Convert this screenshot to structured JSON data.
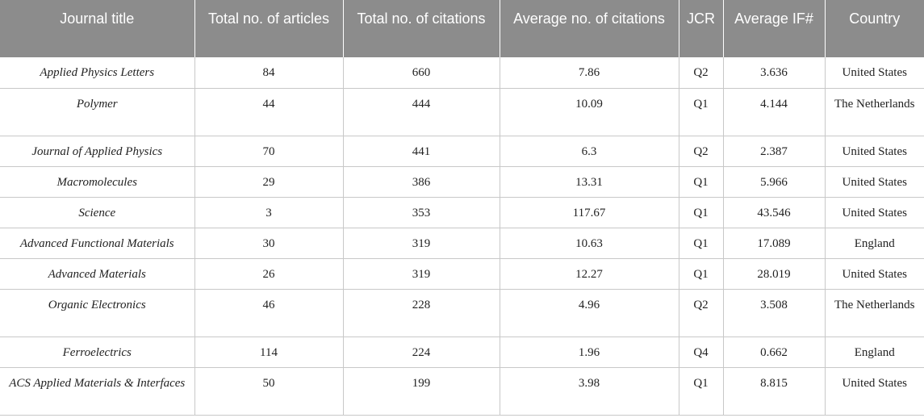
{
  "table": {
    "headers": [
      "Journal title",
      "Total no. of articles",
      "Total no. of citations",
      "Average no. of citations",
      "JCR",
      "Average IF#",
      "Country"
    ],
    "rows": [
      [
        "Applied Physics Letters",
        "84",
        "660",
        "7.86",
        "Q2",
        "3.636",
        "United States"
      ],
      [
        "Polymer",
        "44",
        "444",
        "10.09",
        "Q1",
        "4.144",
        "The Netherlands"
      ],
      [
        "Journal of Applied Physics",
        "70",
        "441",
        "6.3",
        "Q2",
        "2.387",
        "United States"
      ],
      [
        "Macromolecules",
        "29",
        "386",
        "13.31",
        "Q1",
        "5.966",
        "United States"
      ],
      [
        "Science",
        "3",
        "353",
        "117.67",
        "Q1",
        "43.546",
        "United States"
      ],
      [
        "Advanced Functional Materials",
        "30",
        "319",
        "10.63",
        "Q1",
        "17.089",
        "England"
      ],
      [
        "Advanced Materials",
        "26",
        "319",
        "12.27",
        "Q1",
        "28.019",
        "United States"
      ],
      [
        "Organic Electronics",
        "46",
        "228",
        "4.96",
        "Q2",
        "3.508",
        "The Netherlands"
      ],
      [
        "Ferroelectrics",
        "114",
        "224",
        "1.96",
        "Q4",
        "0.662",
        "England"
      ],
      [
        "ACS Applied Materials & Interfaces",
        "50",
        "199",
        "3.98",
        "Q1",
        "8.815",
        "United States"
      ]
    ]
  }
}
